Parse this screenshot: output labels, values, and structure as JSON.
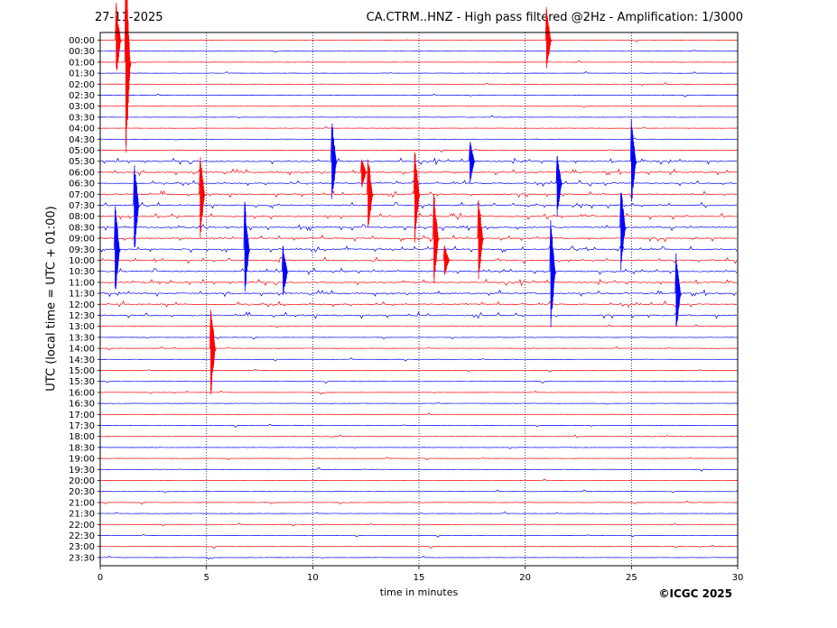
{
  "header": {
    "date": "27-11-2025",
    "title": "CA.CTRM..HNZ - High pass filtered @2Hz - Amplification: 1/3000"
  },
  "footer": {
    "credit": "©ICGC 2025"
  },
  "chart_data": {
    "type": "line",
    "subtype": "helicorder",
    "xlabel": "time in minutes",
    "ylabel": "UTC (local time = UTC + 01:00)",
    "xlim": [
      0,
      30
    ],
    "xticks": [
      0,
      5,
      10,
      15,
      20,
      25,
      30
    ],
    "vertical_gridlines": [
      5,
      10,
      15,
      20,
      25
    ],
    "row_labels": [
      "00:00",
      "00:30",
      "01:00",
      "01:30",
      "02:00",
      "02:30",
      "03:00",
      "03:30",
      "04:00",
      "04:30",
      "05:00",
      "05:30",
      "06:00",
      "06:30",
      "07:00",
      "07:30",
      "08:00",
      "08:30",
      "09:00",
      "09:30",
      "10:00",
      "10:30",
      "11:00",
      "11:30",
      "12:00",
      "12:30",
      "13:00",
      "13:30",
      "14:00",
      "14:30",
      "15:00",
      "15:30",
      "16:00",
      "16:30",
      "17:00",
      "17:30",
      "18:00",
      "18:30",
      "19:00",
      "19:30",
      "20:00",
      "20:30",
      "21:00",
      "21:30",
      "22:00",
      "22:30",
      "23:00",
      "23:30"
    ],
    "trace_colors": [
      "#ff0000",
      "#0000ff"
    ],
    "noisy_rows": [
      "05:30",
      "06:00",
      "06:30",
      "07:00",
      "07:30",
      "08:00",
      "08:30",
      "09:00",
      "09:30",
      "10:00",
      "10:30",
      "11:00",
      "11:30",
      "12:00",
      "12:30"
    ],
    "events": [
      {
        "row": "00:00",
        "minute": 0.75,
        "rows_spanned": 7
      },
      {
        "row": "00:00",
        "minute": 21.0,
        "rows_spanned": 6
      },
      {
        "row": "01:00",
        "minute": 1.2,
        "rows_spanned": 19
      },
      {
        "row": "05:30",
        "minute": 10.9,
        "rows_spanned": 8
      },
      {
        "row": "06:00",
        "minute": 12.3,
        "rows_spanned": 3
      },
      {
        "row": "05:30",
        "minute": 17.4,
        "rows_spanned": 4
      },
      {
        "row": "05:30",
        "minute": 25.0,
        "rows_spanned": 8
      },
      {
        "row": "06:30",
        "minute": 21.5,
        "rows_spanned": 6
      },
      {
        "row": "07:30",
        "minute": 1.6,
        "rows_spanned": 9
      },
      {
        "row": "07:00",
        "minute": 4.7,
        "rows_spanned": 8
      },
      {
        "row": "07:00",
        "minute": 12.6,
        "rows_spanned": 8
      },
      {
        "row": "07:00",
        "minute": 14.8,
        "rows_spanned": 9
      },
      {
        "row": "08:30",
        "minute": 24.5,
        "rows_spanned": 8
      },
      {
        "row": "09:00",
        "minute": 15.7,
        "rows_spanned": 9
      },
      {
        "row": "09:00",
        "minute": 17.8,
        "rows_spanned": 8
      },
      {
        "row": "09:30",
        "minute": 0.7,
        "rows_spanned": 9
      },
      {
        "row": "09:30",
        "minute": 6.8,
        "rows_spanned": 9
      },
      {
        "row": "10:00",
        "minute": 16.2,
        "rows_spanned": 3
      },
      {
        "row": "10:30",
        "minute": 8.6,
        "rows_spanned": 5
      },
      {
        "row": "10:30",
        "minute": 21.2,
        "rows_spanned": 11
      },
      {
        "row": "11:30",
        "minute": 27.1,
        "rows_spanned": 8
      },
      {
        "row": "14:00",
        "minute": 5.2,
        "rows_spanned": 9
      }
    ]
  }
}
